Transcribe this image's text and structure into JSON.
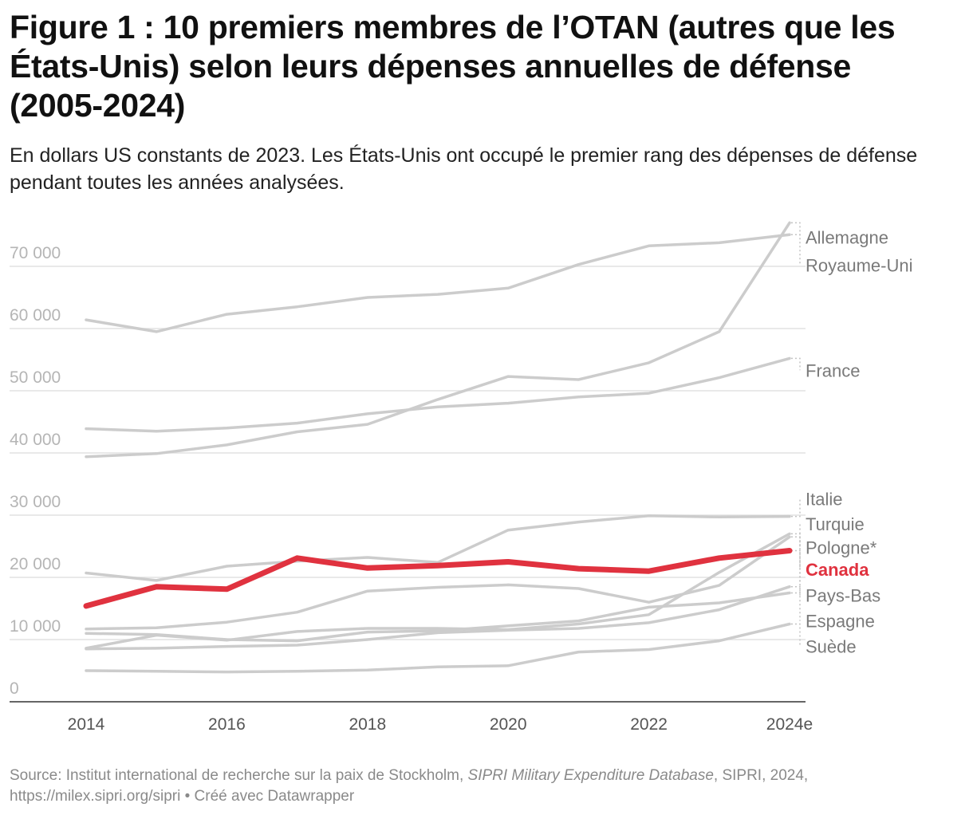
{
  "header": {
    "title": "Figure 1 : 10 premiers membres de l’OTAN (autres que les États-Unis) selon leurs dépenses annuelles de défense (2005-2024)",
    "subtitle": "En dollars US constants de 2023. Les États-Unis ont occupé le premier rang des dépenses de défense pendant toutes les années analysées."
  },
  "footer": {
    "source_prefix": "Source: Institut international de recherche sur la paix de Stockholm, ",
    "source_italic": "SIPRI Military Expenditure Database",
    "source_suffix": ", SIPRI, 2024, https://milex.sipri.org/sipri • Créé avec Datawrapper"
  },
  "chart_data": {
    "type": "line",
    "title": "Figure 1 : 10 premiers membres de l’OTAN (autres que les États-Unis) selon leurs dépenses annuelles de défense (2005-2024)",
    "subtitle": "En dollars US constants de 2023. Les États-Unis ont occupé le premier rang des dépenses de défense pendant toutes les années analysées.",
    "x": [
      2014,
      2015,
      2016,
      2017,
      2018,
      2019,
      2020,
      2021,
      2022,
      2023,
      2024
    ],
    "x_tick_values": [
      2014,
      2016,
      2018,
      2020,
      2022,
      2024
    ],
    "x_tick_labels": [
      "2014",
      "2016",
      "2018",
      "2020",
      "2022",
      "2024e"
    ],
    "y_ticks": [
      0,
      10000,
      20000,
      30000,
      40000,
      50000,
      60000,
      70000
    ],
    "y_tick_labels": [
      "0",
      "10 000",
      "20 000",
      "30 000",
      "40 000",
      "50 000",
      "60 000",
      "70 000"
    ],
    "ylim": [
      0,
      77000
    ],
    "grid": "horizontal",
    "legend": "direct labels at right",
    "colors": {
      "highlight": "#e0323f",
      "other": "#cccccc",
      "gridline": "#e2e2e2",
      "axis": "#333333"
    },
    "series": [
      {
        "name": "Allemagne",
        "highlight": false,
        "values": [
          39400,
          39900,
          41300,
          43400,
          44600,
          48600,
          52300,
          51800,
          54500,
          59500,
          77000
        ]
      },
      {
        "name": "Royaume-Uni",
        "highlight": false,
        "values": [
          61400,
          59500,
          62300,
          63500,
          65000,
          65500,
          66500,
          70300,
          73300,
          73800,
          75100
        ]
      },
      {
        "name": "France",
        "highlight": false,
        "values": [
          43900,
          43500,
          44000,
          44800,
          46300,
          47400,
          48000,
          49000,
          49600,
          52100,
          55200
        ]
      },
      {
        "name": "Italie",
        "highlight": false,
        "values": [
          20700,
          19500,
          21800,
          22600,
          23200,
          22400,
          27600,
          28900,
          29900,
          29700,
          29800
        ]
      },
      {
        "name": "Turquie",
        "highlight": false,
        "values": [
          11000,
          10800,
          10000,
          9800,
          11200,
          11400,
          12200,
          13000,
          15200,
          15900,
          17500
        ]
      },
      {
        "name": "Pologne*",
        "highlight": false,
        "values": [
          8600,
          10700,
          9900,
          11300,
          11800,
          11800,
          11600,
          12500,
          14000,
          20800,
          27000
        ]
      },
      {
        "name": "Canada",
        "highlight": true,
        "values": [
          15400,
          18500,
          18100,
          23100,
          21500,
          21900,
          22500,
          21400,
          21000,
          23100,
          24300
        ]
      },
      {
        "name": "Pays-Bas",
        "highlight": false,
        "values": [
          8500,
          8600,
          8900,
          9100,
          10000,
          11100,
          11500,
          11800,
          12700,
          14800,
          18500
        ]
      },
      {
        "name": "Espagne",
        "highlight": false,
        "values": [
          11700,
          11900,
          12800,
          14400,
          17800,
          18400,
          18800,
          18200,
          16000,
          18700,
          26500
        ]
      },
      {
        "name": "Suède",
        "highlight": false,
        "values": [
          5000,
          4900,
          4800,
          4900,
          5100,
          5600,
          5800,
          8000,
          8400,
          9800,
          12500
        ]
      }
    ],
    "labels": [
      {
        "series": "Allemagne",
        "text": "Allemagne",
        "label_y": 74700
      },
      {
        "series": "Royaume-Uni",
        "text": "Royaume-Uni",
        "label_y": 70200
      },
      {
        "series": "France",
        "text": "France",
        "label_y": 53300
      },
      {
        "series": "Italie",
        "text": "Italie",
        "label_y": 32600
      },
      {
        "series": "Turquie",
        "text": "Turquie",
        "label_y": 28600
      },
      {
        "series": "Pologne*",
        "text": "Pologne*",
        "label_y": 24800
      },
      {
        "series": "Canada",
        "text": "Canada",
        "label_y": 21300
      },
      {
        "series": "Pays-Bas",
        "text": "Pays-Bas",
        "label_y": 17100
      },
      {
        "series": "Espagne",
        "text": "Espagne",
        "label_y": 13000
      },
      {
        "series": "Suède",
        "text": "Suède",
        "label_y": 8900
      }
    ]
  }
}
